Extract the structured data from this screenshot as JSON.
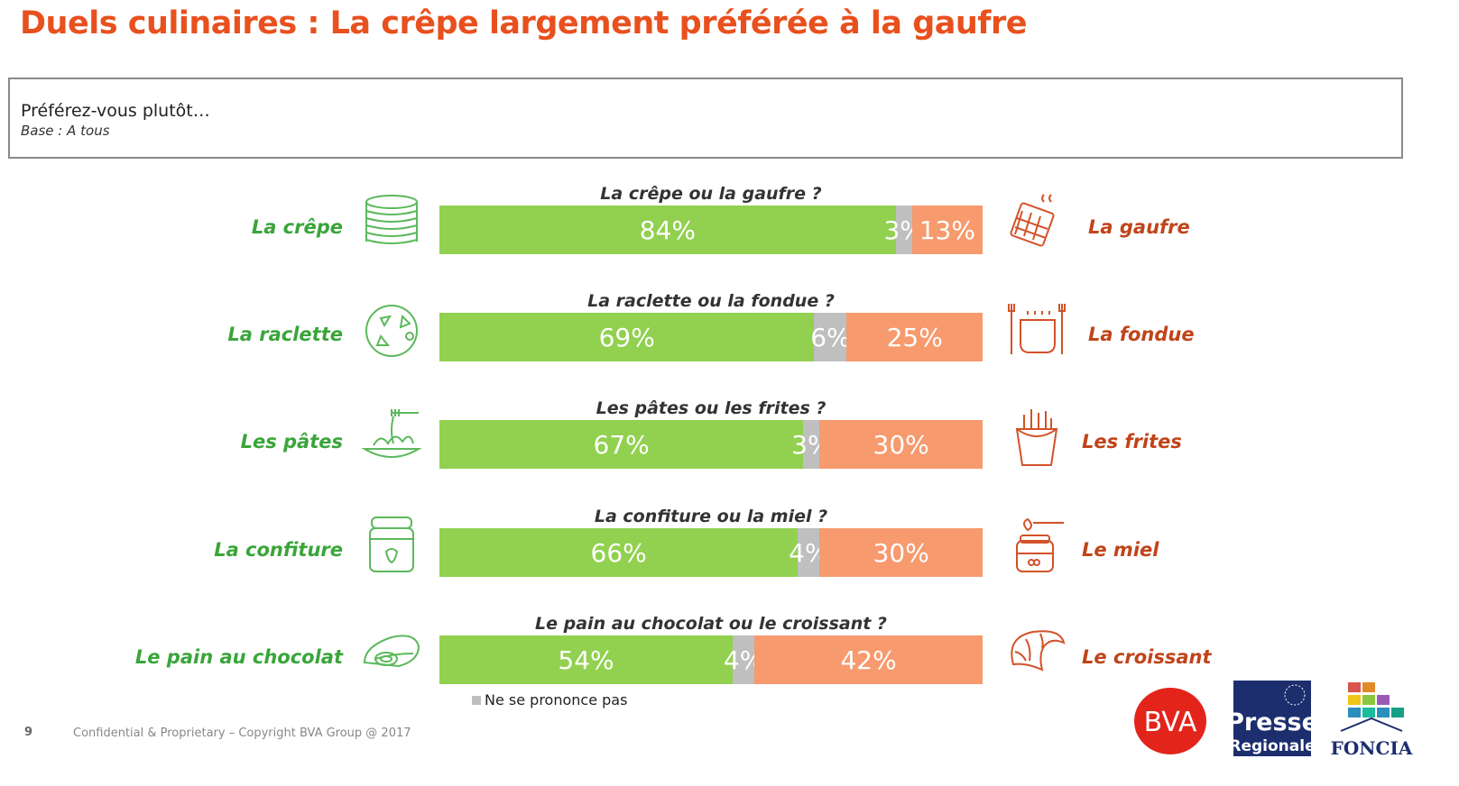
{
  "header": {
    "title": "Duels culinaires : La crêpe largement préférée à la gaufre"
  },
  "question": {
    "text": "Préférez-vous plutôt…",
    "base": "Base : A tous"
  },
  "legend": {
    "label": "Ne se prononce pas"
  },
  "footer": {
    "page": "9",
    "copyright": "Confidential & Proprietary – Copyright BVA Group @  2017"
  },
  "logos": {
    "bva": "BVA",
    "presse_top": "Presse",
    "presse_bottom": "Regionale",
    "foncia": "FONCIA"
  },
  "colors": {
    "left": "#92d050",
    "mid": "#bfbfbf",
    "right": "#f79a6e",
    "left_text": "#3aa53a",
    "right_text": "#c0441a",
    "title": "#e8501e"
  },
  "icons": {
    "left": [
      "crepe-stack-icon",
      "raclette-icon",
      "pasta-icon",
      "jam-jar-icon",
      "pain-au-chocolat-icon"
    ],
    "right": [
      "waffle-icon",
      "fondue-icon",
      "fries-icon",
      "honey-icon",
      "croissant-icon"
    ]
  },
  "chart_data": {
    "type": "bar",
    "orientation": "horizontal",
    "stacked": true,
    "categories": [
      "La crêpe ou la gaufre ?",
      "La raclette ou la fondue ?",
      "Les pâtes ou les frites ?",
      "La confiture ou la miel ?",
      "Le pain au chocolat ou le croissant ?"
    ],
    "left_labels": [
      "La crêpe",
      "La raclette",
      "Les pâtes",
      "La confiture",
      "Le pain au chocolat"
    ],
    "right_labels": [
      "La gaufre",
      "La fondue",
      "Les frites",
      "Le miel",
      "Le croissant"
    ],
    "series": [
      {
        "values": [
          84,
          69,
          67,
          66,
          54
        ],
        "labels": [
          "84%",
          "69%",
          "67%",
          "66%",
          "54%"
        ]
      },
      {
        "name": "Ne se prononce pas",
        "values": [
          3,
          6,
          3,
          4,
          4
        ],
        "labels": [
          "3%",
          "6%",
          "3%",
          "4%",
          "4%"
        ]
      },
      {
        "values": [
          13,
          25,
          30,
          30,
          42
        ],
        "labels": [
          "13%",
          "25%",
          "30%",
          "30%",
          "42%"
        ]
      }
    ],
    "xlim": [
      0,
      100
    ],
    "legend": "bottom"
  }
}
